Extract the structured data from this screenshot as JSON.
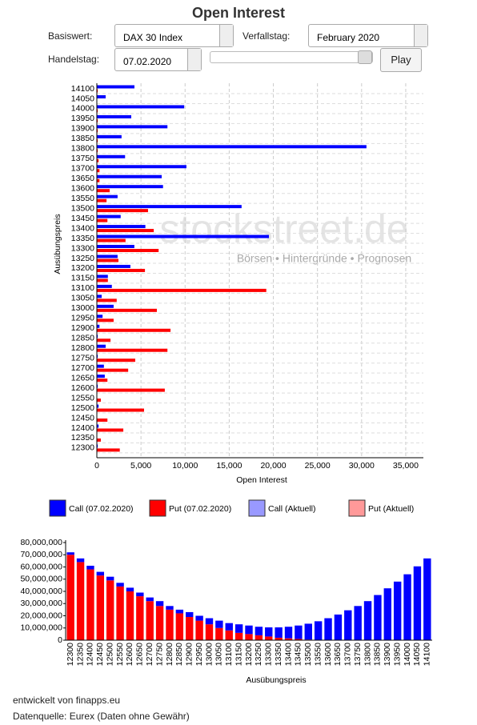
{
  "header": {
    "title": "Open Interest",
    "controls": [
      {
        "label": "Basiswert:",
        "value": "DAX 30 Index"
      },
      {
        "label": "Verfallstag:",
        "value": "February 2020"
      },
      {
        "label": "Handelstag:",
        "value": "07.02.2020"
      }
    ],
    "button": "Play"
  },
  "chart_data": [
    {
      "type": "horizontal_bar",
      "xlabel": "Open Interest",
      "ylabel": "Ausübungspreis",
      "watermark": [
        "stockstreet.de",
        "Börsen • Hintergründe • Prognosen"
      ],
      "categories": [
        "12300",
        "12350",
        "12400",
        "12450",
        "12500",
        "12550",
        "12600",
        "12650",
        "12700",
        "12750",
        "12800",
        "12850",
        "12900",
        "12950",
        "13000",
        "13050",
        "13100",
        "13150",
        "13200",
        "13250",
        "13300",
        "13350",
        "13400",
        "13450",
        "13500",
        "13550",
        "13600",
        "13650",
        "13700",
        "13750",
        "13800",
        "13850",
        "13900",
        "13950",
        "14000",
        "14050",
        "14100"
      ],
      "series": [
        {
          "name": "Call (07.02.2020)",
          "color": "#0000ff",
          "values": [
            100,
            0,
            200,
            0,
            200,
            0,
            100,
            900,
            800,
            100,
            1000,
            100,
            300,
            650,
            1900,
            550,
            1700,
            1250,
            3800,
            2350,
            4250,
            19500,
            5500,
            2700,
            16400,
            2350,
            7500,
            7350,
            10150,
            3200,
            30550,
            2800,
            8000,
            3900,
            9900,
            1000,
            4260
          ]
        },
        {
          "name": "Put (07.02.2020)",
          "color": "#ff0000",
          "values": [
            2600,
            450,
            3000,
            1200,
            5350,
            450,
            7700,
            1200,
            3550,
            4350,
            8000,
            1550,
            8350,
            1900,
            6800,
            2250,
            19200,
            1250,
            5450,
            2450,
            7000,
            3250,
            6450,
            1200,
            5800,
            1100,
            1450,
            300,
            300,
            200,
            100,
            100,
            100,
            100,
            100,
            0,
            100
          ]
        },
        {
          "name": "Call (Aktuell)",
          "color": "#9999ff",
          "values": [
            null,
            null,
            null,
            null,
            null,
            null,
            null,
            null,
            null,
            null,
            null,
            null,
            null,
            null,
            null,
            null,
            null,
            null,
            null,
            null,
            null,
            null,
            null,
            null,
            null,
            null,
            null,
            null,
            null,
            null,
            null,
            null,
            null,
            null,
            null,
            null,
            null
          ]
        },
        {
          "name": "Put (Aktuell)",
          "color": "#ff9999",
          "values": [
            null,
            null,
            null,
            null,
            null,
            null,
            null,
            null,
            null,
            null,
            null,
            null,
            null,
            null,
            null,
            null,
            null,
            null,
            null,
            null,
            null,
            null,
            null,
            null,
            null,
            null,
            null,
            null,
            null,
            null,
            null,
            null,
            null,
            null,
            null,
            null,
            null
          ]
        }
      ],
      "xlim": [
        0,
        37000
      ],
      "xticks": [
        0,
        {
          "value": 5000,
          "label": "5,000"
        },
        {
          "value": 10000,
          "label": "10,000"
        },
        {
          "value": 15000,
          "label": "15,000"
        },
        {
          "value": 20000,
          "label": "20,000"
        },
        {
          "value": 25000,
          "label": "25,000"
        },
        {
          "value": 30000,
          "label": "30,000"
        },
        {
          "value": 35000,
          "label": "35,000"
        }
      ],
      "grid": true
    },
    {
      "type": "stacked_bar",
      "xlabel": "Ausübungspreis",
      "categories": [
        "12300",
        "12350",
        "12400",
        "12450",
        "12500",
        "12550",
        "12600",
        "12650",
        "12700",
        "12750",
        "12800",
        "12850",
        "12900",
        "12950",
        "13000",
        "13050",
        "13100",
        "13150",
        "13200",
        "13250",
        "13300",
        "13350",
        "13400",
        "13450",
        "13500",
        "13550",
        "13600",
        "13650",
        "13700",
        "13750",
        "13800",
        "13850",
        "13900",
        "13950",
        "14000",
        "14050",
        "14100"
      ],
      "series": [
        {
          "color": "#ff0000",
          "values": [
            70000000,
            64000000,
            58000000,
            53000000,
            49000000,
            44000000,
            40000000,
            36000000,
            32000000,
            28000000,
            25000000,
            22000000,
            19000000,
            16000000,
            13000000,
            10000000,
            8000000,
            6000000,
            5000000,
            4000000,
            3000000,
            2000000,
            1500000,
            1000000,
            500000,
            300000,
            0,
            0,
            0,
            0,
            0,
            0,
            0,
            0,
            0,
            0,
            0
          ]
        },
        {
          "color": "#0000ff",
          "values": [
            2000000,
            3000000,
            3000000,
            3000000,
            3000000,
            3000000,
            3000000,
            3000000,
            3000000,
            4000000,
            3000000,
            3000000,
            4000000,
            4000000,
            5000000,
            6000000,
            6000000,
            7000000,
            7000000,
            7000000,
            7500000,
            8500000,
            9500000,
            11000000,
            13000000,
            15200000,
            18000000,
            21000000,
            24500000,
            28000000,
            32000000,
            37000000,
            42500000,
            48000000,
            54000000,
            60500000,
            67000000
          ]
        }
      ],
      "ylim": [
        0,
        80000000
      ],
      "yticks": [
        0,
        {
          "value": 10000000,
          "label": "10,000,000"
        },
        {
          "value": 20000000,
          "label": "20,000,000"
        },
        {
          "value": 30000000,
          "label": "30,000,000"
        },
        {
          "value": 40000000,
          "label": "40,000,000"
        },
        {
          "value": 50000000,
          "label": "50,000,000"
        },
        {
          "value": 60000000,
          "label": "60,000,000"
        },
        {
          "value": 70000000,
          "label": "70,000,000"
        },
        {
          "value": 80000000,
          "label": "80,000,000"
        }
      ]
    }
  ],
  "footer": [
    "entwickelt von finapps.eu",
    "Datenquelle: Eurex (Daten ohne Gewähr)"
  ]
}
